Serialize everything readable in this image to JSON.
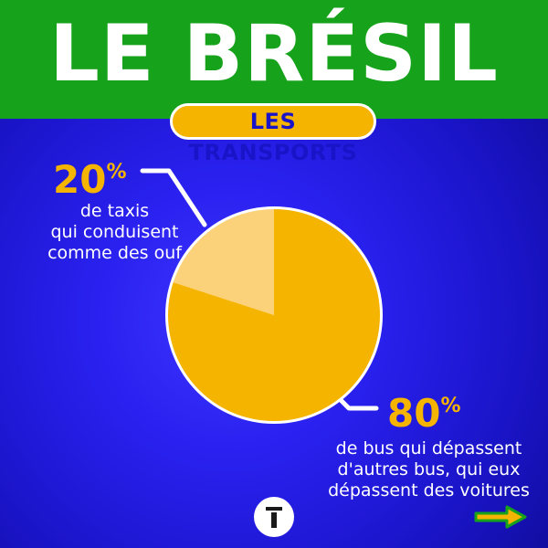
{
  "header": {
    "title": "LE BRÉSIL",
    "subtitle": "LES TRANSPORTS"
  },
  "colors": {
    "header_green": "#17a21c",
    "accent_yellow": "#f5b400",
    "slice_light": "#fbd27a",
    "slice_main": "#f5b400",
    "background_blue": "#2a21f0"
  },
  "chart_data": {
    "type": "pie",
    "title": "",
    "slices": [
      {
        "value": 20,
        "label": "20%",
        "description": "de taxis\nqui conduisent\ncomme des ouf",
        "color": "#fbd27a"
      },
      {
        "value": 80,
        "label": "80%",
        "description": "de bus qui dépassent\nd'autres bus, qui eux\ndépassent des voitures",
        "color": "#f5b400"
      }
    ],
    "legend": "none"
  },
  "footer": {
    "logo_icon": "t-logo-icon",
    "arrow_icon": "arrow-right-icon"
  }
}
